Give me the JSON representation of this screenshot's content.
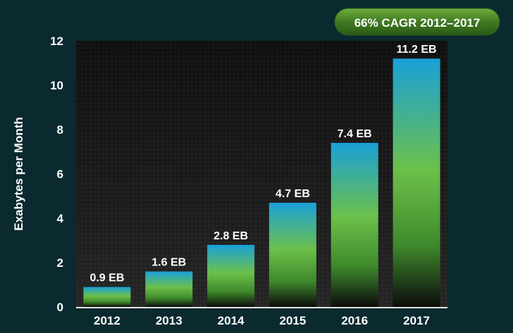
{
  "chart_data": {
    "type": "bar",
    "categories": [
      "2012",
      "2013",
      "2014",
      "2015",
      "2016",
      "2017"
    ],
    "values": [
      0.9,
      1.6,
      2.8,
      4.7,
      7.4,
      11.2
    ],
    "data_labels": [
      "0.9 EB",
      "1.6 EB",
      "2.8 EB",
      "4.7 EB",
      "7.4 EB",
      "11.2 EB"
    ],
    "ylabel": "Exabytes per Month",
    "ylim": [
      0,
      12
    ],
    "yticks": [
      "0",
      "2",
      "4",
      "6",
      "8",
      "10",
      "12"
    ],
    "ytick_values": [
      0,
      2,
      4,
      6,
      8,
      10,
      12
    ],
    "badge": "66% CAGR 2012–2017",
    "grid": false,
    "colors": {
      "page_background": "#0a2a30",
      "plot_background": "#151515",
      "bar_top": "#1aa0d8",
      "bar_mid": "#7dc242",
      "bar_bottom": "#0a0a0a",
      "badge_fill": "#4d8a2a",
      "text": "#ffffff"
    }
  }
}
